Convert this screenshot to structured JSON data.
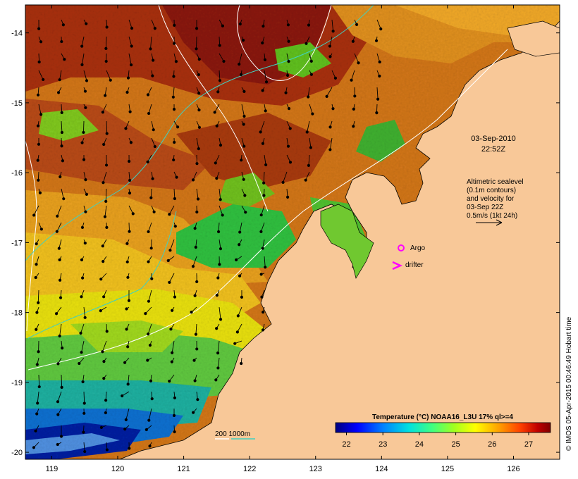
{
  "map": {
    "date_label": "03-Sep-2010",
    "time_label": "22:52Z",
    "altimetry_text": [
      "Altimetric sealevel",
      "(0.1m contours)",
      "and velocity for",
      "03-Sep 22Z",
      "0.5m/s (1kt 24h)"
    ],
    "argo_label": "Argo",
    "drifter_label": "drifter",
    "depth_label": "200  1000m",
    "credit": "© IMOS 05-Apr-2015 00:46:49 Hobart time",
    "colors": {
      "land": "#f8c898",
      "argo_marker": "#ff00ff",
      "drifter_marker": "#ff00ff",
      "contour_200": "#ffffff",
      "contour_1000": "#40d0c0"
    },
    "x_axis": {
      "labels": [
        "119",
        "120",
        "121",
        "122",
        "123",
        "124",
        "125",
        "126"
      ],
      "range": [
        118.6,
        126.7
      ]
    },
    "y_axis": {
      "labels": [
        "-14",
        "-15",
        "-16",
        "-17",
        "-18",
        "-19",
        "-20"
      ],
      "range": [
        -20.1,
        -13.6
      ]
    },
    "colorbar": {
      "title": "Temperature (°C) NOAA16_L3U 17% ql>=4",
      "ticks": [
        "22",
        "23",
        "24",
        "25",
        "26",
        "27"
      ],
      "range": [
        21.7,
        27.6
      ],
      "colors": [
        "#00007f",
        "#0000ff",
        "#0080ff",
        "#00e0e0",
        "#40ff80",
        "#a0ff20",
        "#ffff00",
        "#ffa000",
        "#ff4000",
        "#c00000",
        "#800000"
      ]
    }
  }
}
